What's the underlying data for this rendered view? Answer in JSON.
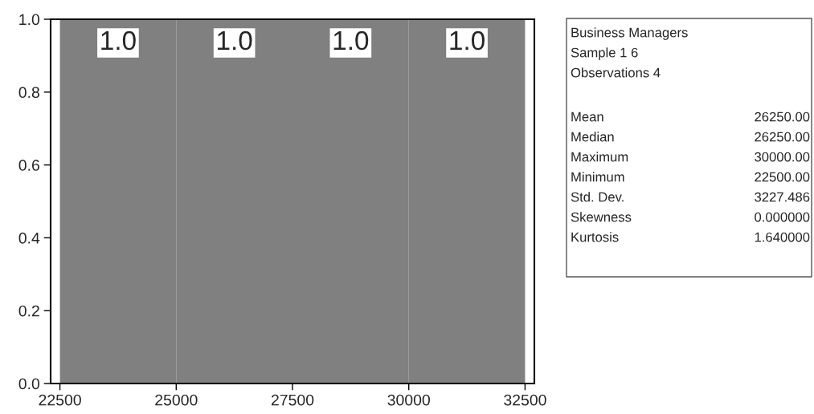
{
  "chart_data": {
    "type": "histogram",
    "bins": [
      22500,
      25000,
      27500,
      30000,
      32500
    ],
    "values": [
      1.0,
      1.0,
      1.0,
      1.0
    ],
    "value_labels": [
      "1.0",
      "1.0",
      "1.0",
      "1.0"
    ],
    "color": "#808080",
    "xlim": [
      22300,
      32700
    ],
    "xticks": [
      22500,
      25000,
      27500,
      30000,
      32500
    ],
    "ylim": [
      0,
      1
    ],
    "yticks": [
      {
        "value": 0,
        "label": "0.0"
      },
      {
        "value": 0.2,
        "label": "0.2"
      },
      {
        "value": 0.4,
        "label": "0.4"
      },
      {
        "value": 0.6,
        "label": "0.6"
      },
      {
        "value": 0.8,
        "label": "0.8"
      },
      {
        "value": 1,
        "label": "1.0"
      }
    ],
    "grid": false,
    "legend": false,
    "annotations": [
      "Business Managers",
      "Sample 1 6",
      "Observations 4",
      "Mean",
      "26250.00",
      "Median",
      "26250.00",
      "Maximum",
      "30000.00",
      "Minimum",
      "22500.00",
      "Std. Dev.",
      "3227.486",
      "Skewness",
      "0.000000",
      "Kurtosis",
      "1.640000"
    ]
  }
}
